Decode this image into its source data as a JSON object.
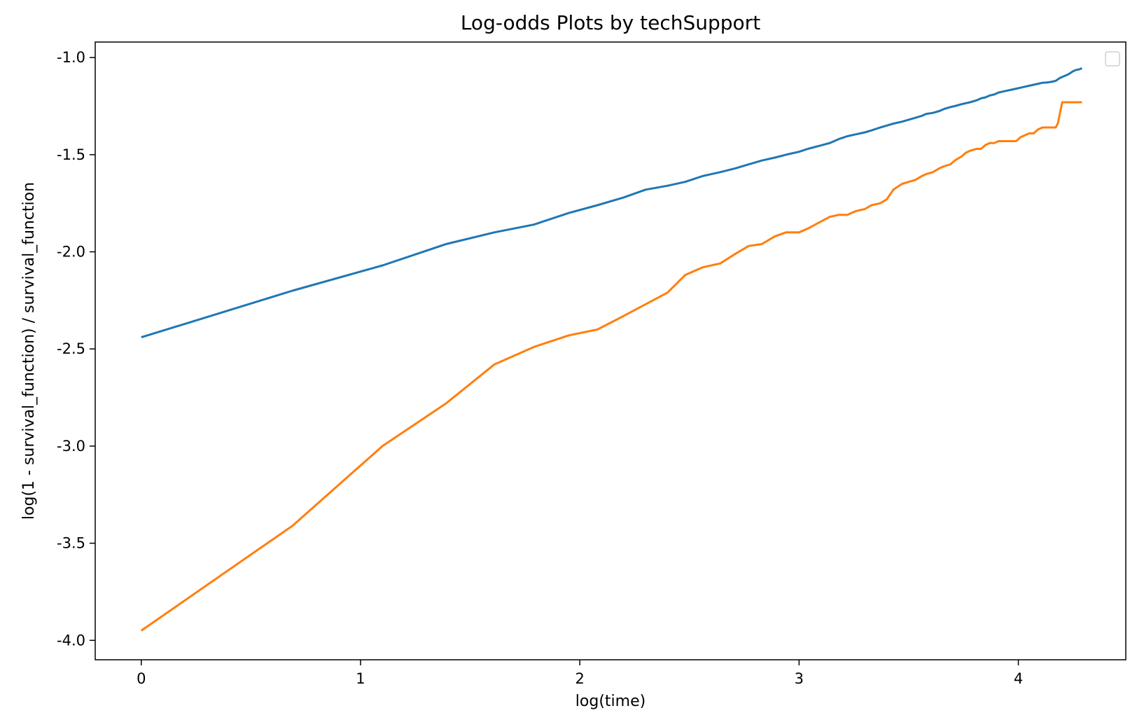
{
  "chart_data": {
    "type": "line",
    "title": "Log-odds Plots by techSupport",
    "xlabel": "log(time)",
    "ylabel": "log(1 - survival_function) / survival_function",
    "xlim": [
      -0.21,
      4.49
    ],
    "ylim": [
      -4.1,
      -0.92
    ],
    "x_ticks": [
      0,
      1,
      2,
      3,
      4
    ],
    "y_ticks": [
      -4.0,
      -3.5,
      -3.0,
      -2.5,
      -2.0,
      -1.5,
      -1.0
    ],
    "x_tick_labels": [
      "0",
      "1",
      "2",
      "3",
      "4"
    ],
    "y_tick_labels": [
      "-4.0",
      "-3.5",
      "-3.0",
      "-2.5",
      "-2.0",
      "-1.5",
      "-1.0"
    ],
    "grid": false,
    "legend": {
      "placement": "top-right",
      "entries": []
    },
    "series": [
      {
        "color": "#1f77b4",
        "points": [
          [
            0,
            -2.44
          ],
          [
            0.69,
            -2.2
          ],
          [
            1.1,
            -2.07
          ],
          [
            1.39,
            -1.96
          ],
          [
            1.61,
            -1.9
          ],
          [
            1.79,
            -1.86
          ],
          [
            1.95,
            -1.8
          ],
          [
            2.08,
            -1.76
          ],
          [
            2.2,
            -1.72
          ],
          [
            2.3,
            -1.68
          ],
          [
            2.4,
            -1.66
          ],
          [
            2.48,
            -1.64
          ],
          [
            2.56,
            -1.61
          ],
          [
            2.64,
            -1.59
          ],
          [
            2.71,
            -1.57
          ],
          [
            2.77,
            -1.55
          ],
          [
            2.83,
            -1.53
          ],
          [
            2.89,
            -1.515
          ],
          [
            2.94,
            -1.5
          ],
          [
            3.0,
            -1.485
          ],
          [
            3.04,
            -1.47
          ],
          [
            3.09,
            -1.455
          ],
          [
            3.14,
            -1.44
          ],
          [
            3.18,
            -1.42
          ],
          [
            3.22,
            -1.405
          ],
          [
            3.26,
            -1.395
          ],
          [
            3.3,
            -1.385
          ],
          [
            3.33,
            -1.375
          ],
          [
            3.37,
            -1.36
          ],
          [
            3.4,
            -1.35
          ],
          [
            3.43,
            -1.34
          ],
          [
            3.47,
            -1.33
          ],
          [
            3.5,
            -1.32
          ],
          [
            3.53,
            -1.31
          ],
          [
            3.56,
            -1.3
          ],
          [
            3.58,
            -1.29
          ],
          [
            3.61,
            -1.285
          ],
          [
            3.64,
            -1.275
          ],
          [
            3.66,
            -1.265
          ],
          [
            3.69,
            -1.255
          ],
          [
            3.71,
            -1.25
          ],
          [
            3.74,
            -1.24
          ],
          [
            3.76,
            -1.235
          ],
          [
            3.78,
            -1.23
          ],
          [
            3.81,
            -1.22
          ],
          [
            3.83,
            -1.21
          ],
          [
            3.85,
            -1.205
          ],
          [
            3.87,
            -1.195
          ],
          [
            3.89,
            -1.19
          ],
          [
            3.91,
            -1.18
          ],
          [
            3.93,
            -1.175
          ],
          [
            3.95,
            -1.17
          ],
          [
            3.97,
            -1.165
          ],
          [
            3.99,
            -1.16
          ],
          [
            4.01,
            -1.155
          ],
          [
            4.03,
            -1.15
          ],
          [
            4.05,
            -1.145
          ],
          [
            4.07,
            -1.14
          ],
          [
            4.09,
            -1.135
          ],
          [
            4.11,
            -1.13
          ],
          [
            4.13,
            -1.128
          ],
          [
            4.15,
            -1.125
          ],
          [
            4.17,
            -1.12
          ],
          [
            4.19,
            -1.105
          ],
          [
            4.2,
            -1.1
          ],
          [
            4.22,
            -1.09
          ],
          [
            4.23,
            -1.085
          ],
          [
            4.25,
            -1.07
          ],
          [
            4.26,
            -1.065
          ],
          [
            4.28,
            -1.06
          ],
          [
            4.29,
            -1.055
          ]
        ]
      },
      {
        "color": "#ff7f0e",
        "points": [
          [
            0,
            -3.95
          ],
          [
            0.69,
            -3.41
          ],
          [
            1.1,
            -3.0
          ],
          [
            1.39,
            -2.78
          ],
          [
            1.61,
            -2.58
          ],
          [
            1.79,
            -2.49
          ],
          [
            1.95,
            -2.43
          ],
          [
            2.08,
            -2.4
          ],
          [
            2.2,
            -2.33
          ],
          [
            2.3,
            -2.27
          ],
          [
            2.4,
            -2.21
          ],
          [
            2.48,
            -2.12
          ],
          [
            2.56,
            -2.08
          ],
          [
            2.64,
            -2.06
          ],
          [
            2.71,
            -2.01
          ],
          [
            2.77,
            -1.97
          ],
          [
            2.83,
            -1.96
          ],
          [
            2.89,
            -1.92
          ],
          [
            2.94,
            -1.9
          ],
          [
            3.0,
            -1.9
          ],
          [
            3.04,
            -1.88
          ],
          [
            3.09,
            -1.85
          ],
          [
            3.14,
            -1.82
          ],
          [
            3.18,
            -1.81
          ],
          [
            3.22,
            -1.81
          ],
          [
            3.26,
            -1.79
          ],
          [
            3.3,
            -1.78
          ],
          [
            3.33,
            -1.76
          ],
          [
            3.37,
            -1.75
          ],
          [
            3.4,
            -1.73
          ],
          [
            3.43,
            -1.68
          ],
          [
            3.47,
            -1.65
          ],
          [
            3.5,
            -1.64
          ],
          [
            3.53,
            -1.63
          ],
          [
            3.56,
            -1.61
          ],
          [
            3.58,
            -1.6
          ],
          [
            3.61,
            -1.59
          ],
          [
            3.64,
            -1.57
          ],
          [
            3.66,
            -1.56
          ],
          [
            3.69,
            -1.55
          ],
          [
            3.71,
            -1.53
          ],
          [
            3.74,
            -1.51
          ],
          [
            3.76,
            -1.49
          ],
          [
            3.78,
            -1.48
          ],
          [
            3.81,
            -1.47
          ],
          [
            3.83,
            -1.47
          ],
          [
            3.85,
            -1.45
          ],
          [
            3.87,
            -1.44
          ],
          [
            3.89,
            -1.44
          ],
          [
            3.91,
            -1.43
          ],
          [
            3.95,
            -1.43
          ],
          [
            3.99,
            -1.43
          ],
          [
            4.01,
            -1.41
          ],
          [
            4.03,
            -1.4
          ],
          [
            4.05,
            -1.39
          ],
          [
            4.07,
            -1.39
          ],
          [
            4.09,
            -1.37
          ],
          [
            4.11,
            -1.36
          ],
          [
            4.15,
            -1.36
          ],
          [
            4.17,
            -1.36
          ],
          [
            4.18,
            -1.34
          ],
          [
            4.2,
            -1.23
          ],
          [
            4.29,
            -1.23
          ]
        ]
      }
    ]
  }
}
